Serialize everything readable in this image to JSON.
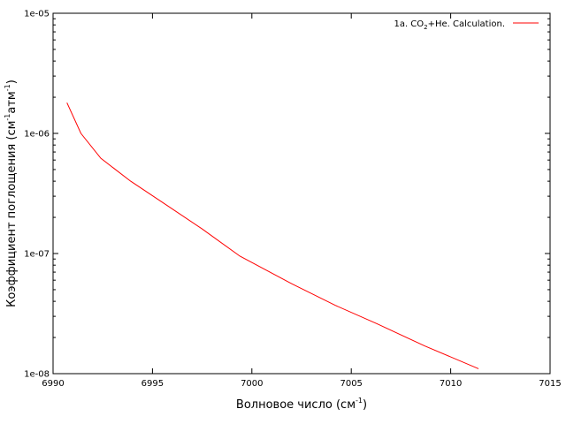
{
  "chart_data": {
    "type": "line",
    "title": "",
    "xlabel": "Волновое число (см",
    "xlabel_sup": "-1",
    "xlabel_end": ")",
    "ylabel": "Коэффициент поглощения (см",
    "ylabel_sup1": "-1",
    "ylabel_mid": "атм",
    "ylabel_sup2": "-1",
    "ylabel_end": ")",
    "xlim": [
      6990,
      7015
    ],
    "ylim": [
      1e-08,
      1e-05
    ],
    "y_scale": "log",
    "grid": false,
    "legend_position": "top-right",
    "x_ticks": [
      {
        "value": 6990,
        "label": "6990"
      },
      {
        "value": 6995,
        "label": "6995"
      },
      {
        "value": 7000,
        "label": "7000"
      },
      {
        "value": 7005,
        "label": "7005"
      },
      {
        "value": 7010,
        "label": "7010"
      },
      {
        "value": 7015,
        "label": "7015"
      }
    ],
    "y_ticks": [
      {
        "value": 1e-08,
        "label": "1e-08"
      },
      {
        "value": 1e-07,
        "label": "1e-07"
      },
      {
        "value": 1e-06,
        "label": "1e-06"
      },
      {
        "value": 1e-05,
        "label": "1e-05"
      }
    ],
    "series": [
      {
        "name": "1a. CO2+He. Calculation.",
        "legend_parts": {
          "pre": "1a. CO",
          "sub": "2",
          "post": "+He. Calculation."
        },
        "color": "#ff0000",
        "x": [
          6990.7,
          6991.4,
          6992.4,
          6993.9,
          6995.6,
          6997.5,
          6999.4,
          7002.0,
          7004.2,
          7006.3,
          7008.7,
          7011.4
        ],
        "y": [
          1.8e-06,
          1e-06,
          6.2e-07,
          4e-07,
          2.6e-07,
          1.6e-07,
          9.5e-08,
          5.6e-08,
          3.7e-08,
          2.6e-08,
          1.7e-08,
          1.1e-08
        ]
      }
    ]
  }
}
